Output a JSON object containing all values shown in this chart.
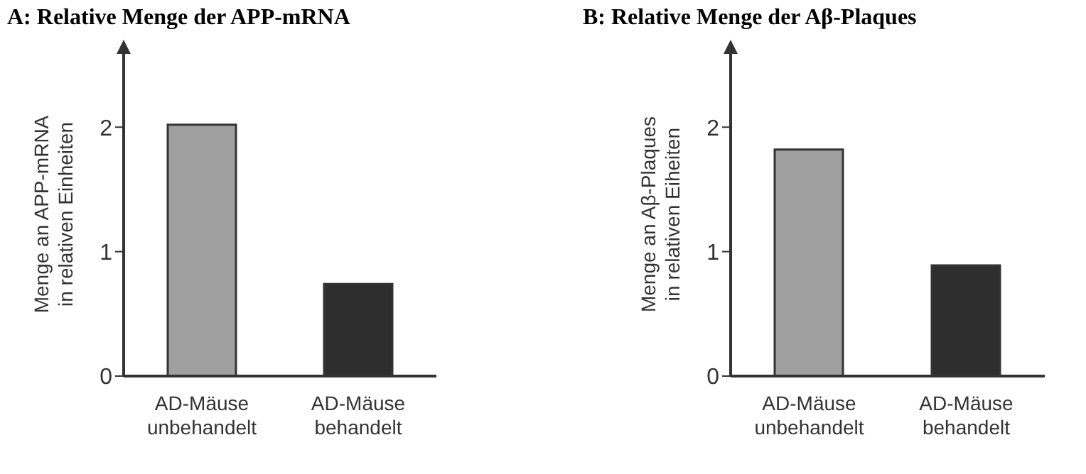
{
  "chart_data": [
    {
      "type": "bar",
      "title": "A: Relative Menge der APP-mRNA",
      "ylabel": "Menge an APP-mRNA\nin relativen Einheiten",
      "categories": [
        "AD-Mäuse\nunbehandelt",
        "AD-Mäuse\nbehandelt"
      ],
      "values": [
        2.02,
        0.74
      ],
      "colors": [
        "#a0a0a0",
        "#2e2e2e"
      ],
      "ylim": [
        0,
        2.6
      ],
      "yticks": [
        0,
        1,
        2
      ],
      "grid": false,
      "legend": false
    },
    {
      "type": "bar",
      "title": "B: Relative Menge der Aβ-Plaques",
      "ylabel": "Menge an Aβ-Plaques\nin relativen Eiheiten",
      "categories": [
        "AD-Mäuse\nunbehandelt",
        "AD-Mäuse\nbehandelt"
      ],
      "values": [
        1.82,
        0.89
      ],
      "colors": [
        "#a0a0a0",
        "#2e2e2e"
      ],
      "ylim": [
        0,
        2.6
      ],
      "yticks": [
        0,
        1,
        2
      ],
      "grid": false,
      "legend": false
    }
  ]
}
